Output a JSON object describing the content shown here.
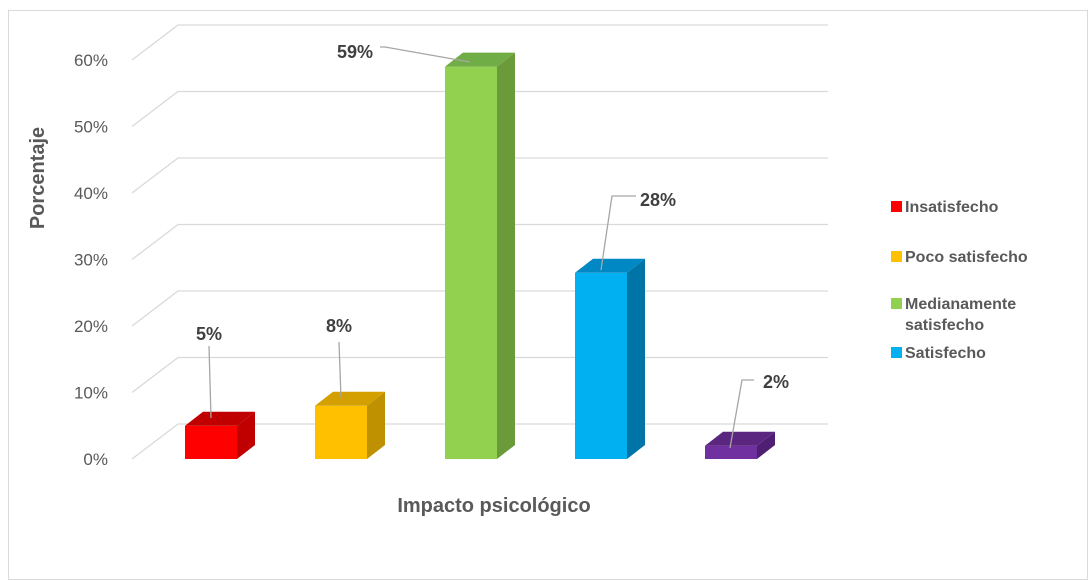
{
  "chart_data": {
    "type": "bar",
    "style": "3d-column",
    "title": "",
    "xlabel": "Impacto psicológico",
    "ylabel": "Porcentaje",
    "ylim": [
      0,
      60
    ],
    "yticks": [
      "0%",
      "10%",
      "20%",
      "30%",
      "40%",
      "50%",
      "60%"
    ],
    "grid": true,
    "legend_position": "right",
    "series": [
      {
        "name": "Insatisfecho",
        "value": 5,
        "label": "5%",
        "color": "#ff0000",
        "side_color": "#c00000",
        "top_color": "#c00000"
      },
      {
        "name": "Poco satisfecho",
        "value": 8,
        "label": "8%",
        "color": "#ffc000",
        "side_color": "#bf9000",
        "top_color": "#d4a000"
      },
      {
        "name": "Medianamente satisfecho",
        "value": 59,
        "label": "59%",
        "color": "#92d050",
        "side_color": "#6a9a3a",
        "top_color": "#70ad47"
      },
      {
        "name": "Satisfecho",
        "value": 28,
        "label": "28%",
        "color": "#00b0f0",
        "side_color": "#0074a6",
        "top_color": "#0088c4"
      },
      {
        "name": "",
        "value": 2,
        "label": "2%",
        "color": "#7030a0",
        "side_color": "#4f1f73",
        "top_color": "#5b2680"
      }
    ],
    "legend": [
      {
        "label": "Insatisfecho",
        "color": "#ff0000"
      },
      {
        "label": "Poco satisfecho",
        "color": "#ffc000"
      },
      {
        "label": "Medianamente satisfecho",
        "color": "#92d050"
      },
      {
        "label": "Satisfecho",
        "color": "#00b0f0"
      }
    ]
  }
}
